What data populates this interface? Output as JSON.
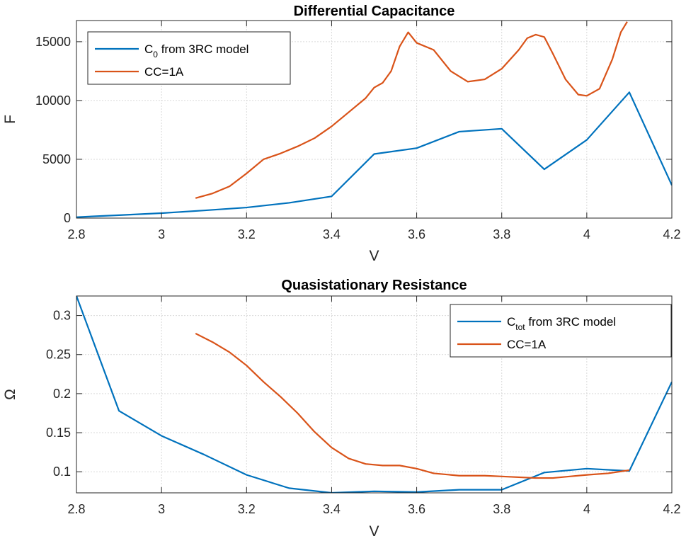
{
  "chart_data": [
    {
      "type": "line",
      "title": "Differential Capacitance",
      "xlabel": "V",
      "ylabel": "F",
      "xlim": [
        2.8,
        4.2
      ],
      "ylim": [
        0,
        16800
      ],
      "xticks": [
        2.8,
        3,
        3.2,
        3.4,
        3.6,
        3.8,
        4,
        4.2
      ],
      "xtick_labels": [
        "2.8",
        "3",
        "3.2",
        "3.4",
        "3.6",
        "3.8",
        "4",
        "4.2"
      ],
      "yticks": [
        0,
        5000,
        10000,
        15000
      ],
      "ytick_labels": [
        "0",
        "5000",
        "10000",
        "15000"
      ],
      "grid": true,
      "legend_position": "top-left",
      "series": [
        {
          "name_main": "C",
          "name_sub": "0",
          "name_rest": " from 3RC model",
          "color": "#0072BD",
          "x": [
            2.8,
            2.9,
            3.0,
            3.1,
            3.2,
            3.3,
            3.4,
            3.5,
            3.6,
            3.7,
            3.8,
            3.9,
            4.0,
            4.1,
            4.2
          ],
          "y": [
            80,
            250,
            420,
            650,
            900,
            1300,
            1850,
            5450,
            5950,
            7350,
            7600,
            4150,
            6650,
            10700,
            2800
          ]
        },
        {
          "name": "CC=1A",
          "color": "#D95319",
          "x": [
            3.08,
            3.12,
            3.16,
            3.2,
            3.24,
            3.28,
            3.32,
            3.36,
            3.4,
            3.44,
            3.48,
            3.5,
            3.52,
            3.54,
            3.56,
            3.58,
            3.6,
            3.64,
            3.68,
            3.72,
            3.76,
            3.8,
            3.84,
            3.86,
            3.88,
            3.9,
            3.92,
            3.95,
            3.98,
            4.0,
            4.03,
            4.06,
            4.08,
            4.095
          ],
          "y": [
            1700,
            2100,
            2700,
            3800,
            5000,
            5500,
            6100,
            6800,
            7800,
            9000,
            10200,
            11100,
            11500,
            12500,
            14600,
            15800,
            14900,
            14300,
            12500,
            11600,
            11800,
            12700,
            14300,
            15300,
            15600,
            15400,
            14000,
            11800,
            10500,
            10400,
            11000,
            13500,
            15800,
            16700
          ]
        }
      ]
    },
    {
      "type": "line",
      "title": "Quasistationary Resistance",
      "xlabel": "V",
      "ylabel": "Ω",
      "xlim": [
        2.8,
        4.2
      ],
      "ylim": [
        0.073,
        0.325
      ],
      "xticks": [
        2.8,
        3,
        3.2,
        3.4,
        3.6,
        3.8,
        4,
        4.2
      ],
      "xtick_labels": [
        "2.8",
        "3",
        "3.2",
        "3.4",
        "3.6",
        "3.8",
        "4",
        "4.2"
      ],
      "yticks": [
        0.1,
        0.15,
        0.2,
        0.25,
        0.3
      ],
      "ytick_labels": [
        "0.1",
        "0.15",
        "0.2",
        "0.25",
        "0.3"
      ],
      "grid": true,
      "legend_position": "top-right",
      "series": [
        {
          "name_main": "C",
          "name_sub": "tot",
          "name_rest": " from 3RC model",
          "color": "#0072BD",
          "x": [
            2.8,
            2.9,
            3.0,
            3.1,
            3.2,
            3.3,
            3.4,
            3.5,
            3.6,
            3.7,
            3.8,
            3.9,
            4.0,
            4.1,
            4.2
          ],
          "y": [
            0.325,
            0.178,
            0.146,
            0.122,
            0.096,
            0.079,
            0.073,
            0.075,
            0.074,
            0.077,
            0.077,
            0.099,
            0.104,
            0.101,
            0.215
          ]
        },
        {
          "name": "CC=1A",
          "color": "#D95319",
          "x": [
            3.08,
            3.12,
            3.16,
            3.2,
            3.24,
            3.28,
            3.32,
            3.36,
            3.4,
            3.44,
            3.48,
            3.52,
            3.56,
            3.6,
            3.64,
            3.7,
            3.76,
            3.8,
            3.84,
            3.88,
            3.92,
            3.96,
            4.0,
            4.05,
            4.1
          ],
          "y": [
            0.277,
            0.266,
            0.253,
            0.236,
            0.215,
            0.196,
            0.175,
            0.151,
            0.131,
            0.117,
            0.11,
            0.108,
            0.108,
            0.104,
            0.098,
            0.095,
            0.095,
            0.094,
            0.093,
            0.092,
            0.092,
            0.094,
            0.096,
            0.098,
            0.102
          ]
        }
      ]
    }
  ]
}
